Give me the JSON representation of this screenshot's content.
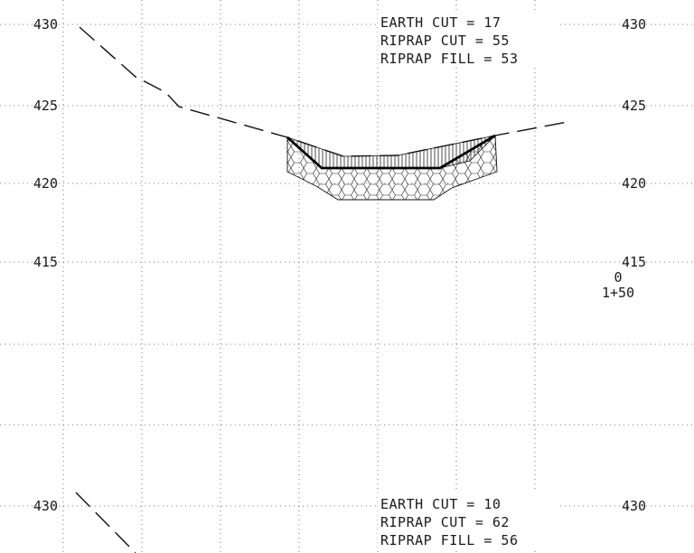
{
  "top_section": {
    "elevations": [
      "430",
      "425",
      "420",
      "415"
    ],
    "quantities": [
      "EARTH CUT = 17",
      "RIPRAP CUT = 55",
      "RIPRAP FILL = 53"
    ],
    "offset": "0",
    "station": "1+50"
  },
  "bottom_section": {
    "elevations": [
      "430"
    ],
    "quantities": [
      "EARTH CUT = 10",
      "RIPRAP CUT = 62",
      "RIPRAP FILL = 56"
    ]
  }
}
